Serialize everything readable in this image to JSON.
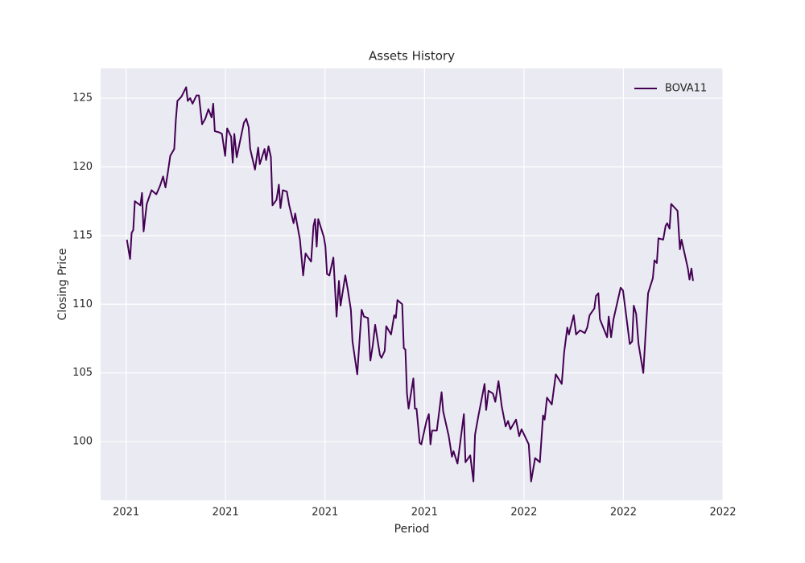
{
  "chart_data": {
    "type": "line",
    "title": "Assets History",
    "x_label": "Period",
    "y_label": "Closing Price",
    "x": [
      2021.002,
      2021.01,
      2021.014,
      2021.018,
      2021.022,
      2021.036,
      2021.04,
      2021.044,
      2021.052,
      2021.064,
      2021.076,
      2021.085,
      2021.093,
      2021.099,
      2021.105,
      2021.111,
      2021.121,
      2021.125,
      2021.129,
      2021.139,
      2021.151,
      2021.155,
      2021.161,
      2021.167,
      2021.177,
      2021.183,
      2021.191,
      2021.199,
      2021.207,
      2021.215,
      2021.219,
      2021.223,
      2021.235,
      2021.241,
      2021.249,
      2021.254,
      2021.264,
      2021.268,
      2021.272,
      2021.278,
      2021.296,
      2021.302,
      2021.308,
      2021.312,
      2021.324,
      2021.332,
      2021.336,
      2021.348,
      2021.352,
      2021.358,
      2021.364,
      2021.368,
      2021.378,
      2021.384,
      2021.388,
      2021.394,
      2021.404,
      2021.41,
      2021.421,
      2021.425,
      2021.437,
      2021.445,
      2021.451,
      2021.465,
      2021.471,
      2021.475,
      2021.479,
      2021.483,
      2021.497,
      2021.501,
      2021.505,
      2021.511,
      2021.521,
      2021.529,
      2021.535,
      2021.539,
      2021.551,
      2021.557,
      2021.565,
      2021.569,
      2021.581,
      2021.592,
      2021.598,
      2021.608,
      2021.614,
      2021.62,
      2021.626,
      2021.638,
      2021.642,
      2021.65,
      2021.654,
      2021.666,
      2021.674,
      2021.678,
      2021.682,
      2021.694,
      2021.698,
      2021.702,
      2021.706,
      2021.71,
      2021.722,
      2021.726,
      2021.73,
      2021.738,
      2021.742,
      2021.755,
      2021.761,
      2021.765,
      2021.769,
      2021.781,
      2021.793,
      2021.797,
      2021.811,
      2021.819,
      2021.823,
      2021.833,
      2021.841,
      2021.849,
      2021.853,
      2021.865,
      2021.873,
      2021.877,
      2021.885,
      2021.901,
      2021.905,
      2021.911,
      2021.922,
      2021.928,
      2021.936,
      2021.944,
      2021.954,
      2021.96,
      2021.966,
      2021.98,
      2021.988,
      2021.994,
      2022.012,
      2022.018,
      2022.028,
      2022.04,
      2022.048,
      2022.052,
      2022.058,
      2022.07,
      2022.08,
      2022.095,
      2022.101,
      2022.109,
      2022.113,
      2022.125,
      2022.131,
      2022.141,
      2022.153,
      2022.159,
      2022.165,
      2022.177,
      2022.181,
      2022.187,
      2022.191,
      2022.209,
      2022.213,
      2022.219,
      2022.225,
      2022.243,
      2022.249,
      2022.266,
      2022.272,
      2022.276,
      2022.282,
      2022.288,
      2022.3,
      2022.306,
      2022.312,
      2022.324,
      2022.328,
      2022.334,
      2022.338,
      2022.35,
      2022.356,
      2022.36,
      2022.366,
      2022.37,
      2022.386,
      2022.392,
      2022.396,
      2022.412,
      2022.416,
      2022.421,
      2022.425
    ],
    "series": [
      {
        "name": "BOVA11",
        "color": "#440154",
        "values": [
          114.7,
          113.3,
          115.2,
          115.4,
          117.5,
          117.2,
          118.1,
          115.3,
          117.3,
          118.3,
          118.0,
          118.6,
          119.3,
          118.5,
          119.6,
          120.8,
          121.3,
          123.4,
          124.8,
          125.1,
          125.8,
          124.8,
          125.0,
          124.6,
          125.2,
          125.2,
          123.1,
          123.5,
          124.2,
          123.6,
          124.6,
          122.6,
          122.5,
          122.4,
          120.8,
          122.8,
          122.2,
          120.3,
          122.4,
          120.7,
          123.2,
          123.5,
          122.9,
          121.3,
          119.8,
          121.4,
          120.2,
          121.3,
          120.5,
          121.5,
          120.7,
          117.2,
          117.6,
          118.7,
          117.0,
          118.3,
          118.2,
          117.2,
          115.9,
          116.6,
          114.7,
          112.1,
          113.7,
          113.1,
          115.7,
          116.2,
          114.2,
          116.2,
          114.9,
          114.2,
          112.2,
          112.1,
          113.4,
          109.1,
          111.7,
          109.9,
          112.1,
          111.1,
          109.6,
          107.3,
          104.9,
          109.6,
          109.1,
          109.0,
          105.9,
          107.0,
          108.5,
          106.3,
          106.1,
          106.6,
          108.4,
          107.8,
          109.2,
          109.0,
          110.3,
          110.0,
          106.8,
          106.7,
          103.5,
          102.4,
          104.6,
          102.4,
          102.4,
          99.9,
          99.8,
          101.5,
          102.0,
          99.8,
          100.8,
          100.8,
          103.6,
          102.2,
          100.4,
          98.9,
          99.3,
          98.4,
          100.2,
          102.0,
          98.5,
          99.0,
          97.1,
          100.5,
          101.8,
          104.2,
          102.3,
          103.7,
          103.5,
          102.9,
          104.4,
          102.6,
          101.1,
          101.5,
          100.9,
          101.6,
          100.4,
          100.9,
          99.8,
          97.1,
          98.8,
          98.5,
          101.9,
          101.6,
          103.2,
          102.7,
          104.9,
          104.2,
          106.5,
          108.3,
          107.8,
          109.2,
          107.8,
          108.1,
          107.9,
          108.3,
          109.2,
          109.7,
          110.6,
          110.8,
          108.9,
          107.6,
          109.1,
          107.6,
          108.9,
          111.2,
          111.0,
          107.1,
          107.3,
          109.9,
          109.3,
          107.1,
          105.0,
          108.0,
          110.8,
          111.9,
          113.2,
          113.0,
          114.8,
          114.7,
          115.7,
          115.9,
          115.5,
          117.3,
          116.8,
          114.0,
          114.7,
          112.6,
          111.8,
          112.6,
          111.7
        ]
      }
    ],
    "xlim": [
      2020.936,
      2022.5
    ],
    "xticks": [
      {
        "value": 2021.0,
        "label": "2021"
      },
      {
        "value": 2021.25,
        "label": "2021"
      },
      {
        "value": 2021.5,
        "label": "2021"
      },
      {
        "value": 2021.75,
        "label": "2021"
      },
      {
        "value": 2022.0,
        "label": "2022"
      },
      {
        "value": 2022.25,
        "label": "2022"
      },
      {
        "value": 2022.5,
        "label": "2022"
      }
    ],
    "ylim": [
      95.73,
      127.17
    ],
    "yticks": [
      100,
      105,
      110,
      115,
      120,
      125
    ],
    "grid": true,
    "legend": "upper right"
  }
}
